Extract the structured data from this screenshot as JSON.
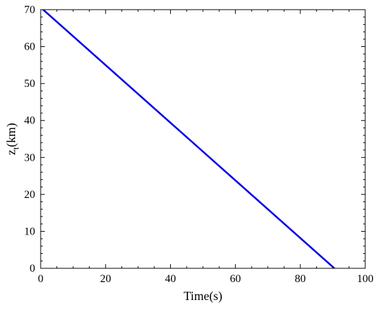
{
  "chart_data": {
    "type": "line",
    "xlabel": "Time(s)",
    "ylabel": {
      "base": "z",
      "subscript": "t",
      "rest": "(km)"
    },
    "xlim": [
      0,
      100
    ],
    "ylim": [
      0,
      70
    ],
    "xticks": [
      0,
      20,
      40,
      60,
      80,
      100
    ],
    "yticks": [
      0,
      10,
      20,
      30,
      40,
      50,
      60,
      70
    ],
    "grid": false,
    "series": [
      {
        "color": "#0000e6",
        "x": [
          0,
          90.5
        ],
        "y": [
          70.6,
          0
        ]
      }
    ]
  }
}
